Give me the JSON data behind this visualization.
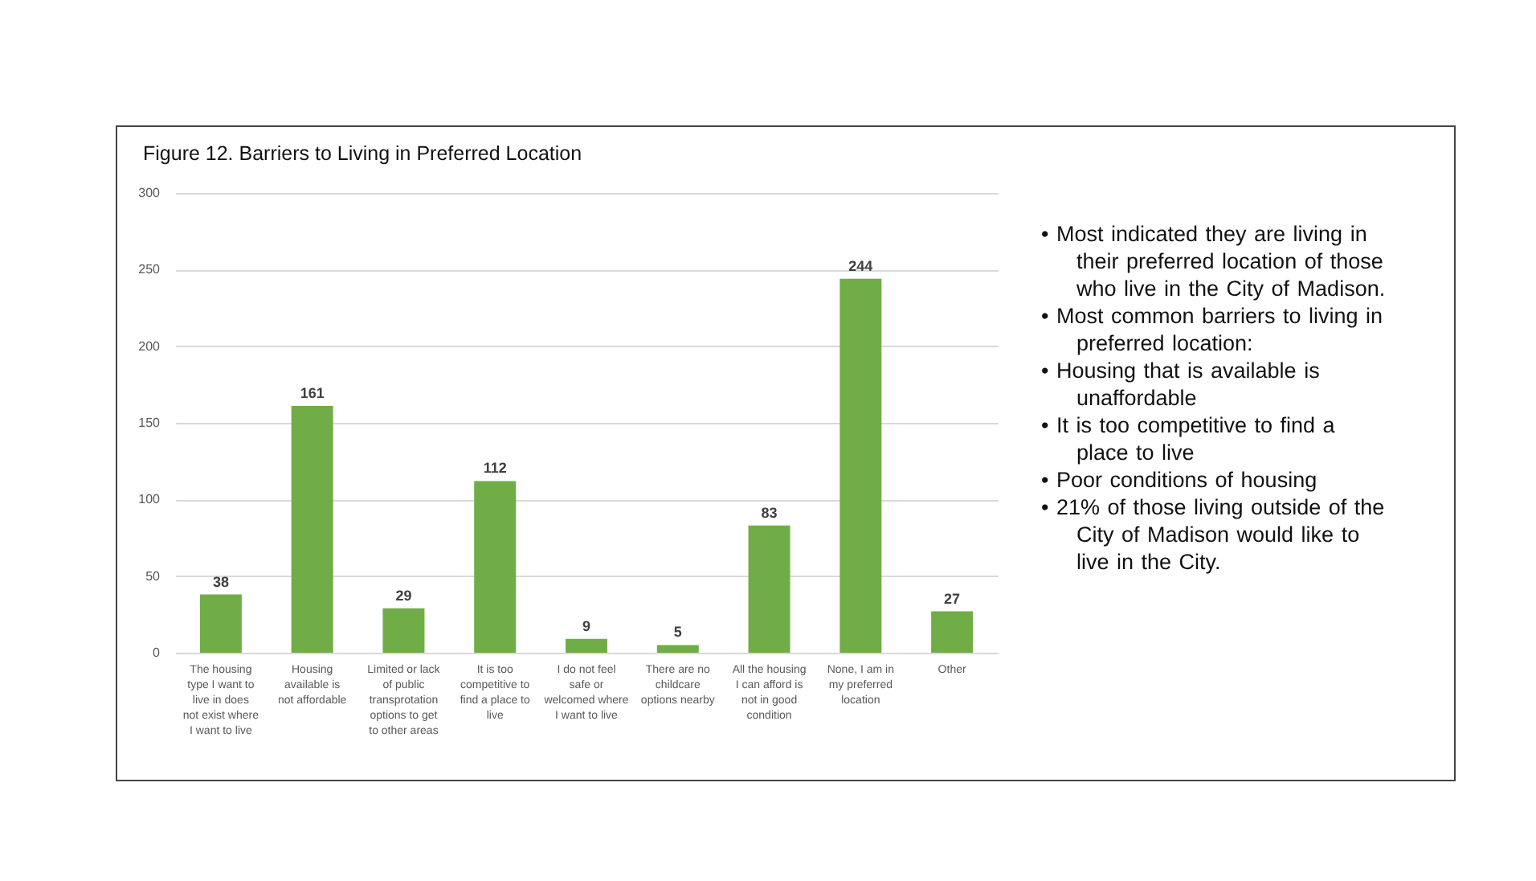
{
  "chart_data": {
    "type": "bar",
    "title": "Figure 12. Barriers to Living in Preferred Location",
    "categories": [
      "The housing type I want to live in does not exist where I want to live",
      "Housing available is not affordable",
      "Limited or lack of public transprotation options to get to other areas",
      "It is too competitive to find a place to live",
      "I do not feel safe or welcomed where I want to live",
      "There are no childcare options nearby",
      "All the housing I can afford is not in good condition",
      "None, I am in my preferred location",
      "Other"
    ],
    "values": [
      38,
      161,
      29,
      112,
      9,
      5,
      83,
      244,
      27
    ],
    "color": "#70ad47",
    "ylim": [
      0,
      300
    ],
    "yticks": [
      0,
      50,
      100,
      150,
      200,
      250,
      300
    ],
    "grid": "y",
    "data_labels": true,
    "annotations": [
      "• Most indicated they are living in their preferred location of those who live in the City of Madison.",
      "• Most common barriers to living in preferred location:",
      "• Housing that is available is unaffordable",
      "• It is too competitive to find a place to live",
      "• Poor conditions of housing",
      "• 21% of those living outside of the City of Madison would like to live in the City."
    ]
  }
}
